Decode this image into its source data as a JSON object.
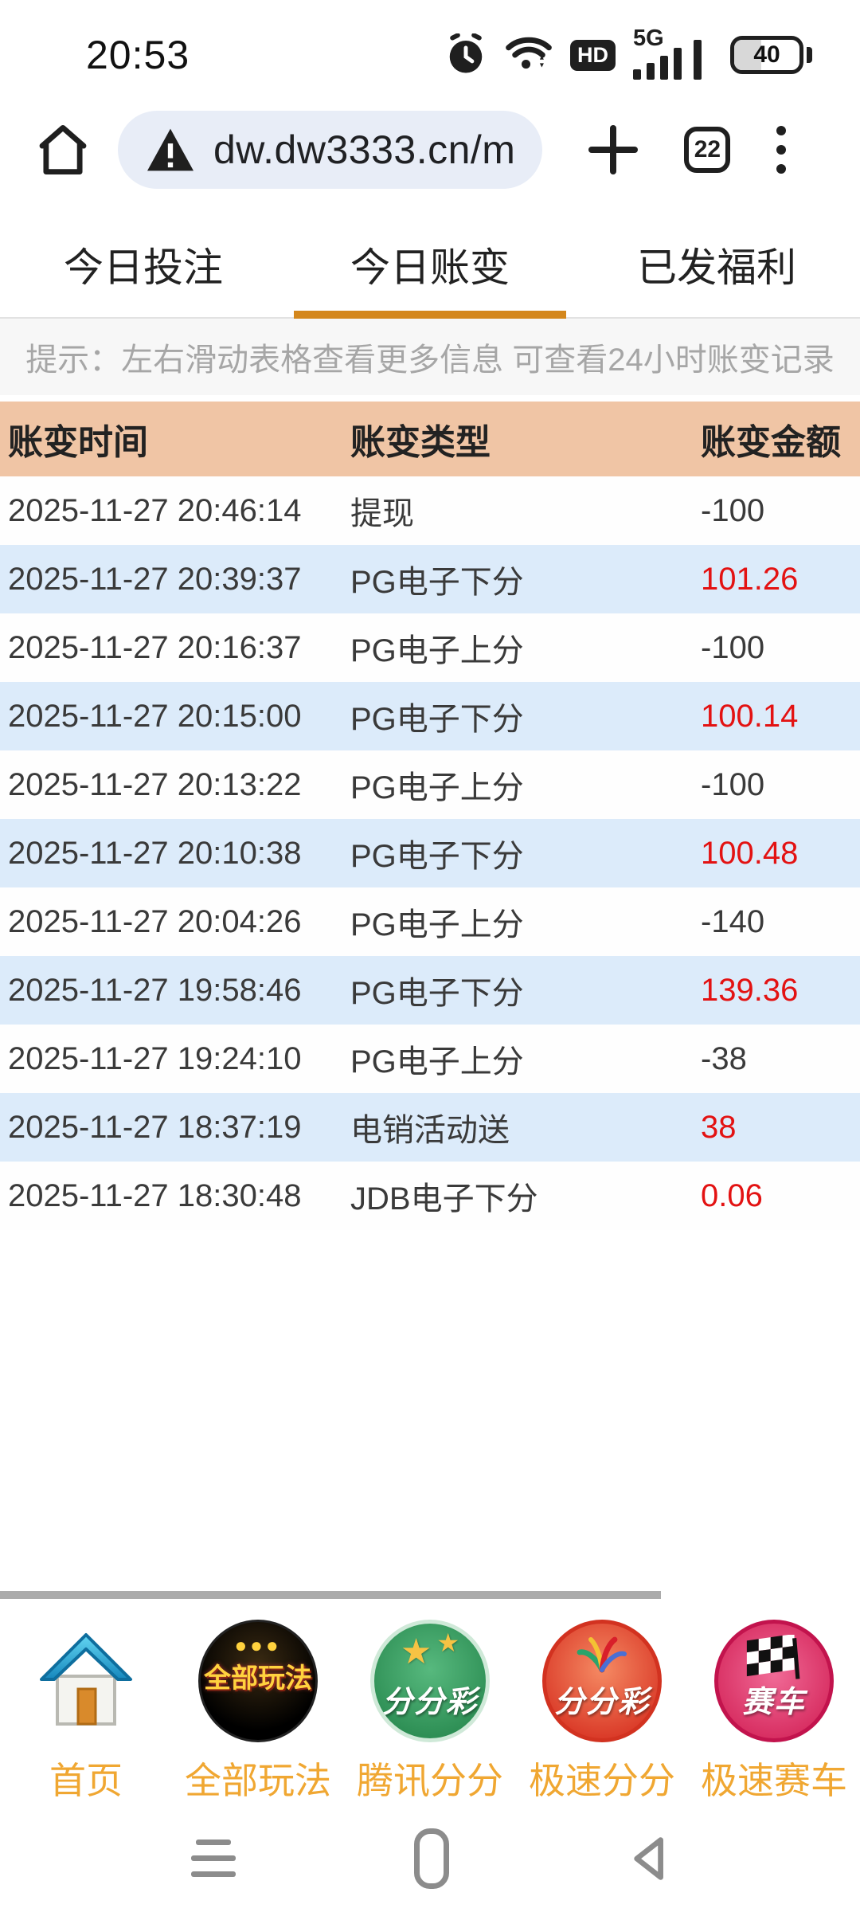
{
  "status_bar": {
    "time": "20:53",
    "network": "5G",
    "hd": "HD",
    "battery": "40"
  },
  "browser": {
    "url": "dw.dw3333.cn/m",
    "tab_count": "22"
  },
  "tabs": {
    "active_index": 1,
    "items": [
      {
        "label": "今日投注"
      },
      {
        "label": "今日账变"
      },
      {
        "label": "已发福利"
      }
    ]
  },
  "hint": "提示：左右滑动表格查看更多信息 可查看24小时账变记录",
  "table": {
    "headers": [
      "账变时间",
      "账变类型",
      "账变金额"
    ],
    "rows": [
      {
        "time": "2025-11-27 20:46:14",
        "type": "提现",
        "amount": "-100"
      },
      {
        "time": "2025-11-27 20:39:37",
        "type": "PG电子下分",
        "amount": "101.26"
      },
      {
        "time": "2025-11-27 20:16:37",
        "type": "PG电子上分",
        "amount": "-100"
      },
      {
        "time": "2025-11-27 20:15:00",
        "type": "PG电子下分",
        "amount": "100.14"
      },
      {
        "time": "2025-11-27 20:13:22",
        "type": "PG电子上分",
        "amount": "-100"
      },
      {
        "time": "2025-11-27 20:10:38",
        "type": "PG电子下分",
        "amount": "100.48"
      },
      {
        "time": "2025-11-27 20:04:26",
        "type": "PG电子上分",
        "amount": "-140"
      },
      {
        "time": "2025-11-27 19:58:46",
        "type": "PG电子下分",
        "amount": "139.36"
      },
      {
        "time": "2025-11-27 19:24:10",
        "type": "PG电子上分",
        "amount": "-38"
      },
      {
        "time": "2025-11-27 18:37:19",
        "type": "电销活动送",
        "amount": "38"
      },
      {
        "time": "2025-11-27 18:30:48",
        "type": "JDB电子下分",
        "amount": "0.06"
      }
    ]
  },
  "bottom_nav": {
    "items": [
      {
        "label": "首页",
        "badge_text": "",
        "kind": "home"
      },
      {
        "label": "全部玩法",
        "badge_text": "全部玩法",
        "kind": "black"
      },
      {
        "label": "腾讯分分",
        "badge_text": "分分彩",
        "kind": "green"
      },
      {
        "label": "极速分分",
        "badge_text": "分分彩",
        "kind": "red"
      },
      {
        "label": "极速赛车",
        "badge_text": "赛车",
        "kind": "pink"
      }
    ]
  },
  "colors": {
    "tab_underline": "#d4871c",
    "table_header_bg": "#f0c5a5",
    "row_alt_blue": "#dcebfa",
    "amount_red": "#e31212",
    "nav_label_orange": "#f0a732",
    "url_pill_bg": "#e8edf7"
  }
}
